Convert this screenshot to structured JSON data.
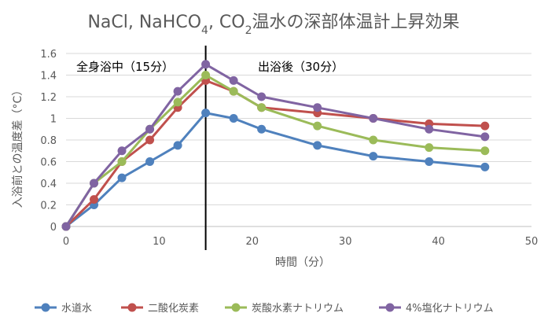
{
  "chart_data": {
    "type": "line",
    "title": {
      "parts": [
        {
          "text": "NaCl, NaHCO",
          "sub": false
        },
        {
          "text": "4",
          "sub": true
        },
        {
          "text": ", CO",
          "sub": false
        },
        {
          "text": "2",
          "sub": true
        },
        {
          "text": "温水の深部体温計上昇効果",
          "sub": false
        }
      ]
    },
    "xlabel": "時間（分）",
    "ylabel": "入浴前との温度差（°C）",
    "xlim": [
      0,
      50
    ],
    "ylim": [
      0,
      1.6
    ],
    "xticks": [
      0,
      10,
      20,
      30,
      40,
      50
    ],
    "xtick_labels": [
      "0",
      "10",
      "20",
      "30",
      "40",
      "50"
    ],
    "yticks": [
      0,
      0.2,
      0.4,
      0.6,
      0.8,
      1.0,
      1.2,
      1.4,
      1.6
    ],
    "ytick_labels": [
      "0",
      "0.2",
      "0.4",
      "0.6",
      "0.8",
      "1",
      "1.2",
      "1.4",
      "1.6"
    ],
    "grid": "horizontal",
    "legend_position": "bottom",
    "annotations": [
      {
        "text": "全身浴中（15分）",
        "region": "left-of-divider"
      },
      {
        "text": "出浴後（30分）",
        "region": "right-of-divider"
      }
    ],
    "divider_x": 15,
    "series": [
      {
        "name": "水道水",
        "color": "#4f81bd",
        "x": [
          0,
          3,
          6,
          9,
          12,
          15,
          18,
          21,
          27,
          33,
          39,
          45
        ],
        "y": [
          0,
          0.2,
          0.45,
          0.6,
          0.75,
          1.05,
          1.0,
          0.9,
          0.75,
          0.65,
          0.6,
          0.55
        ]
      },
      {
        "name": "二酸化炭素",
        "color": "#c0504d",
        "x": [
          0,
          3,
          6,
          9,
          12,
          15,
          18,
          21,
          27,
          33,
          39,
          45
        ],
        "y": [
          0,
          0.25,
          0.6,
          0.8,
          1.1,
          1.35,
          1.25,
          1.1,
          1.05,
          1.0,
          0.95,
          0.93
        ]
      },
      {
        "name": "炭酸水素ナトリウム",
        "color": "#9bbb59",
        "x": [
          0,
          3,
          6,
          9,
          12,
          15,
          18,
          21,
          27,
          33,
          39,
          45
        ],
        "y": [
          0,
          0.4,
          0.6,
          0.9,
          1.15,
          1.4,
          1.25,
          1.1,
          0.93,
          0.8,
          0.73,
          0.7
        ]
      },
      {
        "name": "4%塩化ナトリウム",
        "color": "#8064a2",
        "x": [
          0,
          3,
          6,
          9,
          12,
          15,
          18,
          21,
          27,
          33,
          39,
          45
        ],
        "y": [
          0,
          0.4,
          0.7,
          0.9,
          1.25,
          1.5,
          1.35,
          1.2,
          1.1,
          1.0,
          0.9,
          0.83
        ]
      }
    ]
  }
}
